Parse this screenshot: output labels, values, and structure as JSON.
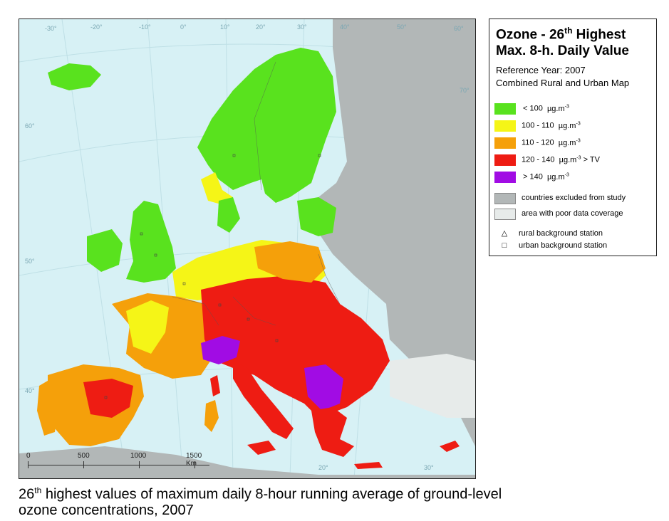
{
  "legend": {
    "title_line1_prefix": "Ozone - 26",
    "title_line1_sup": "th",
    "title_line1_suffix": " Highest",
    "title_line2": "Max. 8-h. Daily Value",
    "subtitle1": "Reference Year: 2007",
    "subtitle2": "Combined Rural and Urban Map",
    "classes": [
      {
        "range": "<  100",
        "unit": "µg.m",
        "exp": "-3",
        "suffix": "",
        "color": "#59e21e"
      },
      {
        "range": "100 - 110",
        "unit": "µg.m",
        "exp": "-3",
        "suffix": "",
        "color": "#f5f517"
      },
      {
        "range": "110 - 120",
        "unit": "µg.m",
        "exp": "-3",
        "suffix": "",
        "color": "#f5a00a"
      },
      {
        "range": "120 - 140",
        "unit": "µg.m",
        "exp": "-3",
        "suffix": " > TV",
        "color": "#ee1c13"
      },
      {
        "range": ">  140",
        "unit": "µg.m",
        "exp": "-3",
        "suffix": "",
        "color": "#a10ce4"
      }
    ],
    "area_items": [
      {
        "label": "countries excluded from study",
        "color": "#b2b7b7"
      },
      {
        "label": "area with poor data coverage",
        "color": "#e7ebea"
      }
    ],
    "stations": [
      {
        "symbol": "△",
        "label": "rural background station"
      },
      {
        "symbol": "□",
        "label": "urban background station"
      }
    ]
  },
  "map": {
    "sea_color": "#d7f1f5",
    "graticule_labels": [
      "-30°",
      "-20°",
      "-10°",
      "0°",
      "10°",
      "20°",
      "30°",
      "40°",
      "50°",
      "60°",
      "70°",
      "60°",
      "50°",
      "40°",
      "20°",
      "30°"
    ],
    "scale_labels": [
      "0",
      "500",
      "1000",
      "1500 Km"
    ]
  },
  "caption": {
    "prefix": "26",
    "sup": "th",
    "line1_rest": " highest values of maximum daily 8-hour running average of ground-level",
    "line2": "ozone concentrations, 2007"
  }
}
